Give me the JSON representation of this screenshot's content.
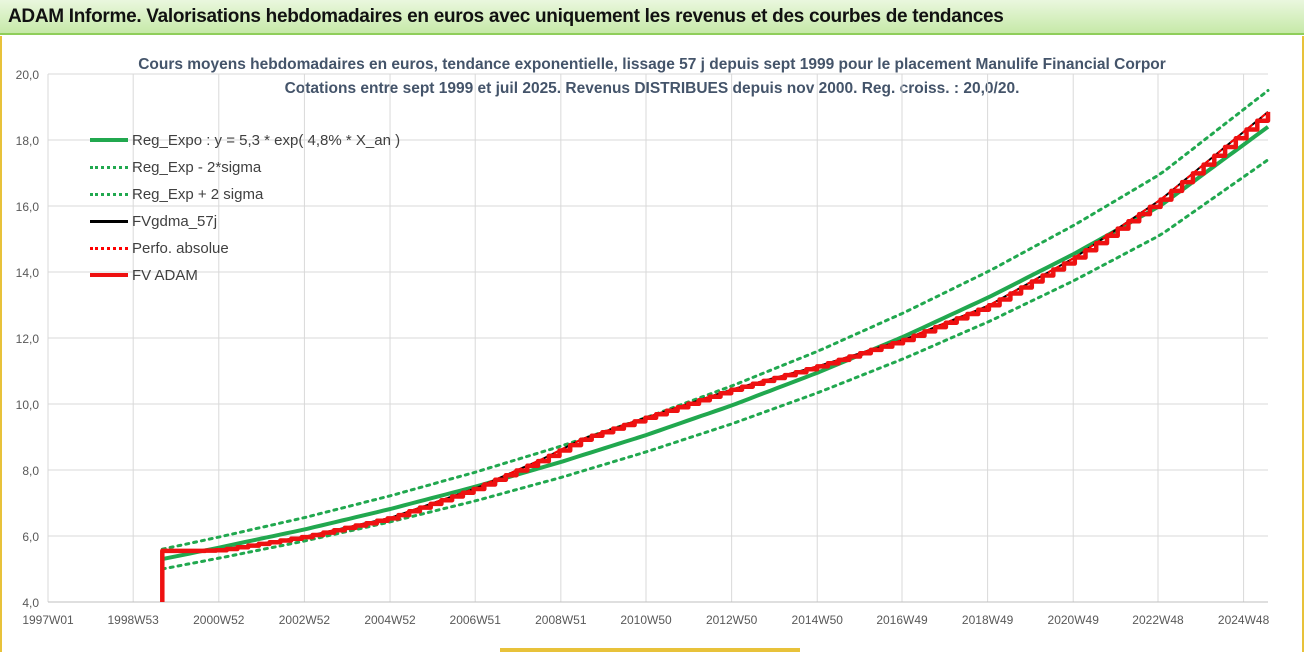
{
  "banner": {
    "title": "ADAM Informe. Valorisations hebdomadaires en euros avec uniquement les revenus et des courbes de tendances"
  },
  "chart_data": {
    "type": "line",
    "title": "Cours moyens hebdomadaires en euros, tendance exponentielle, lissage 57 j depuis sept 1999 pour le placement Manulife Financial Corpor",
    "subtitle": "Cotations entre sept 1999 et juil 2025. Revenus DISTRIBUES depuis nov 2000. Reg. croiss. : 20,0/20.",
    "xlabel": "",
    "ylabel": "",
    "ylim": [
      4.0,
      20.0
    ],
    "yticks": [
      "4,0",
      "6,0",
      "8,0",
      "10,0",
      "12,0",
      "14,0",
      "16,0",
      "18,0",
      "20,0"
    ],
    "xlim": [
      1997.0,
      2025.5
    ],
    "xticks": [
      {
        "x": 1997.0,
        "label": "1997W01"
      },
      {
        "x": 1998.99,
        "label": "1998W53"
      },
      {
        "x": 2000.99,
        "label": "2000W52"
      },
      {
        "x": 2002.99,
        "label": "2002W52"
      },
      {
        "x": 2004.99,
        "label": "2004W52"
      },
      {
        "x": 2006.98,
        "label": "2006W51"
      },
      {
        "x": 2008.98,
        "label": "2008W51"
      },
      {
        "x": 2010.97,
        "label": "2010W50"
      },
      {
        "x": 2012.97,
        "label": "2012W50"
      },
      {
        "x": 2014.97,
        "label": "2014W50"
      },
      {
        "x": 2016.95,
        "label": "2016W49"
      },
      {
        "x": 2018.95,
        "label": "2018W49"
      },
      {
        "x": 2020.95,
        "label": "2020W49"
      },
      {
        "x": 2022.93,
        "label": "2022W48"
      },
      {
        "x": 2024.93,
        "label": "2024W48"
      }
    ],
    "grid": true,
    "legend_position": "top-left",
    "series": [
      {
        "name": "Reg_Expo : y = 5,3 * exp( 4,8% *  X_an )",
        "color": "#21a84f",
        "style": "solid",
        "x": [
          1999.67,
          2001,
          2003,
          2005,
          2007,
          2009,
          2011,
          2013,
          2015,
          2017,
          2019,
          2021,
          2023,
          2025.5
        ],
        "values": [
          5.3,
          5.65,
          6.2,
          6.82,
          7.5,
          8.25,
          9.07,
          9.97,
          10.96,
          12.05,
          13.25,
          14.57,
          16.02,
          18.4
        ]
      },
      {
        "name": "Reg_Exp - 2*sigma",
        "color": "#21a84f",
        "style": "dotted",
        "x": [
          1999.67,
          2001,
          2003,
          2005,
          2007,
          2009,
          2011,
          2013,
          2015,
          2017,
          2019,
          2021,
          2023,
          2025.5
        ],
        "values": [
          5.0,
          5.33,
          5.85,
          6.43,
          7.07,
          7.78,
          8.56,
          9.41,
          10.35,
          11.38,
          12.51,
          13.76,
          15.13,
          17.4
        ]
      },
      {
        "name": "Reg_Exp + 2 sigma",
        "color": "#21a84f",
        "style": "dotted",
        "x": [
          1999.67,
          2001,
          2003,
          2005,
          2007,
          2009,
          2011,
          2013,
          2015,
          2017,
          2019,
          2021,
          2023,
          2025.5
        ],
        "values": [
          5.6,
          5.97,
          6.56,
          7.22,
          7.94,
          8.73,
          9.6,
          10.56,
          11.61,
          12.77,
          14.04,
          15.44,
          16.98,
          19.5
        ]
      },
      {
        "name": "FVgdma_57j",
        "color": "#000000",
        "style": "solid",
        "x": [
          1999.67,
          2000.5,
          2001,
          2003,
          2005,
          2007,
          2008.5,
          2009.5,
          2011,
          2013,
          2015,
          2017,
          2019,
          2021,
          2023,
          2025.5
        ],
        "values": [
          5.55,
          5.55,
          5.57,
          5.98,
          6.55,
          7.45,
          8.3,
          8.95,
          9.6,
          10.45,
          11.15,
          11.95,
          13.0,
          14.45,
          16.2,
          18.85
        ]
      },
      {
        "name": "Perfo. absolue",
        "color": "#ff0000",
        "style": "dotted",
        "x": [
          1999.67,
          2000.5,
          2001,
          2003,
          2005,
          2007,
          2008.5,
          2009.5,
          2011,
          2013,
          2015,
          2017,
          2019,
          2021,
          2023,
          2025.5
        ],
        "values": [
          5.55,
          5.55,
          5.57,
          5.98,
          6.55,
          7.45,
          8.3,
          8.95,
          9.6,
          10.45,
          11.15,
          11.95,
          13.0,
          14.45,
          16.2,
          18.85
        ]
      },
      {
        "name": "FV ADAM",
        "color": "#ee1111",
        "style": "solid-thick",
        "x": [
          1999.67,
          1999.67,
          2000.5,
          2001,
          2003,
          2005,
          2007,
          2008.5,
          2009.5,
          2011,
          2013,
          2015,
          2017,
          2019,
          2021,
          2023,
          2025.5
        ],
        "values": [
          4.0,
          5.55,
          5.55,
          5.57,
          5.98,
          6.55,
          7.45,
          8.3,
          8.95,
          9.6,
          10.45,
          11.15,
          11.95,
          13.0,
          14.45,
          16.2,
          18.85
        ]
      }
    ]
  }
}
